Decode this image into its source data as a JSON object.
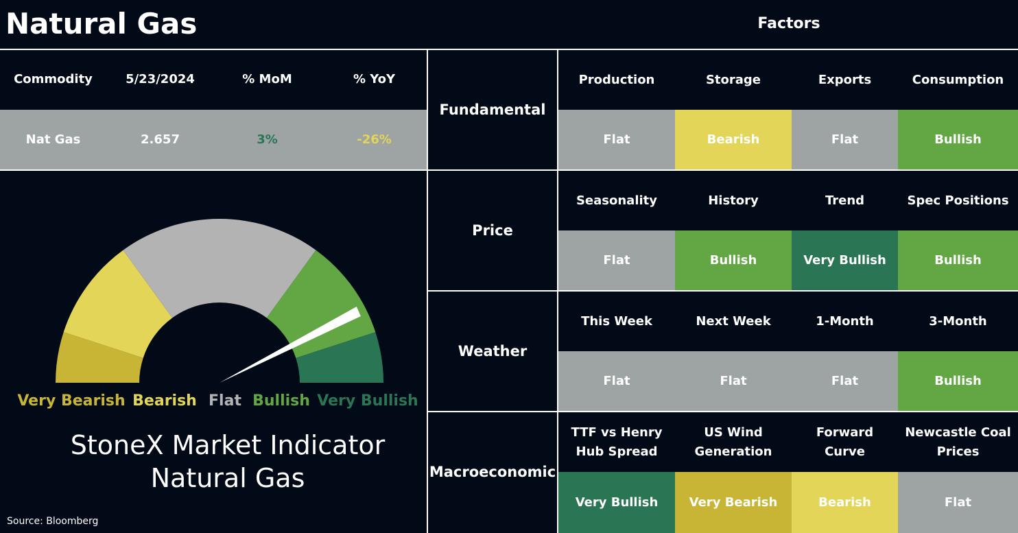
{
  "header": {
    "title": "Natural Gas",
    "factors_title": "Factors"
  },
  "table": {
    "columns": [
      "Commodity",
      "5/23/2024",
      "% MoM",
      "% YoY"
    ],
    "rows": [
      [
        "Nat Gas",
        "2.657",
        "3%",
        "-26%"
      ]
    ],
    "row_colors": [
      [
        "#ffffff",
        "#ffffff",
        "#2a7553",
        "#e2d558"
      ]
    ]
  },
  "gauge": {
    "labels": [
      {
        "text": "Very Bearish",
        "color": "#c9b535"
      },
      {
        "text": "Bearish",
        "color": "#e2d558"
      },
      {
        "text": "Flat",
        "color": "#b3b3b3"
      },
      {
        "text": "Bullish",
        "color": "#62a744"
      },
      {
        "text": "Very Bullish",
        "color": "#2a7553"
      }
    ],
    "caption": [
      "StoneX Market Indicator",
      "Natural Gas"
    ]
  },
  "source": "Source: Bloomberg",
  "factors": [
    {
      "group": "Fundamental",
      "items": [
        {
          "name": "Production",
          "status": "Flat",
          "color": "#9ea3a3"
        },
        {
          "name": "Storage",
          "status": "Bearish",
          "color": "#e2d558"
        },
        {
          "name": "Exports",
          "status": "Flat",
          "color": "#9ea3a3"
        },
        {
          "name": "Consumption",
          "status": "Bullish",
          "color": "#62a744"
        }
      ]
    },
    {
      "group": "Price",
      "items": [
        {
          "name": "Seasonality",
          "status": "Flat",
          "color": "#9ea3a3"
        },
        {
          "name": "History",
          "status": "Bullish",
          "color": "#62a744"
        },
        {
          "name": "Trend",
          "status": "Very Bullish",
          "color": "#2a7553"
        },
        {
          "name": "Spec Positions",
          "status": "Bullish",
          "color": "#62a744"
        }
      ]
    },
    {
      "group": "Weather",
      "items": [
        {
          "name": "This Week",
          "status": "Flat",
          "color": "#9ea3a3"
        },
        {
          "name": "Next Week",
          "status": "Flat",
          "color": "#9ea3a3"
        },
        {
          "name": "1-Month",
          "status": "Flat",
          "color": "#9ea3a3"
        },
        {
          "name": "3-Month",
          "status": "Bullish",
          "color": "#62a744"
        }
      ]
    },
    {
      "group": "Macroeconomic",
      "items": [
        {
          "name": "TTF vs Henry Hub Spread",
          "status": "Very Bullish",
          "color": "#2a7553"
        },
        {
          "name": "US Wind Generation",
          "status": "Very Bearish",
          "color": "#c9b535"
        },
        {
          "name": "Forward Curve",
          "status": "Bearish",
          "color": "#e2d558"
        },
        {
          "name": "Newcastle Coal Prices",
          "status": "Flat",
          "color": "#9ea3a3"
        }
      ]
    }
  ]
}
